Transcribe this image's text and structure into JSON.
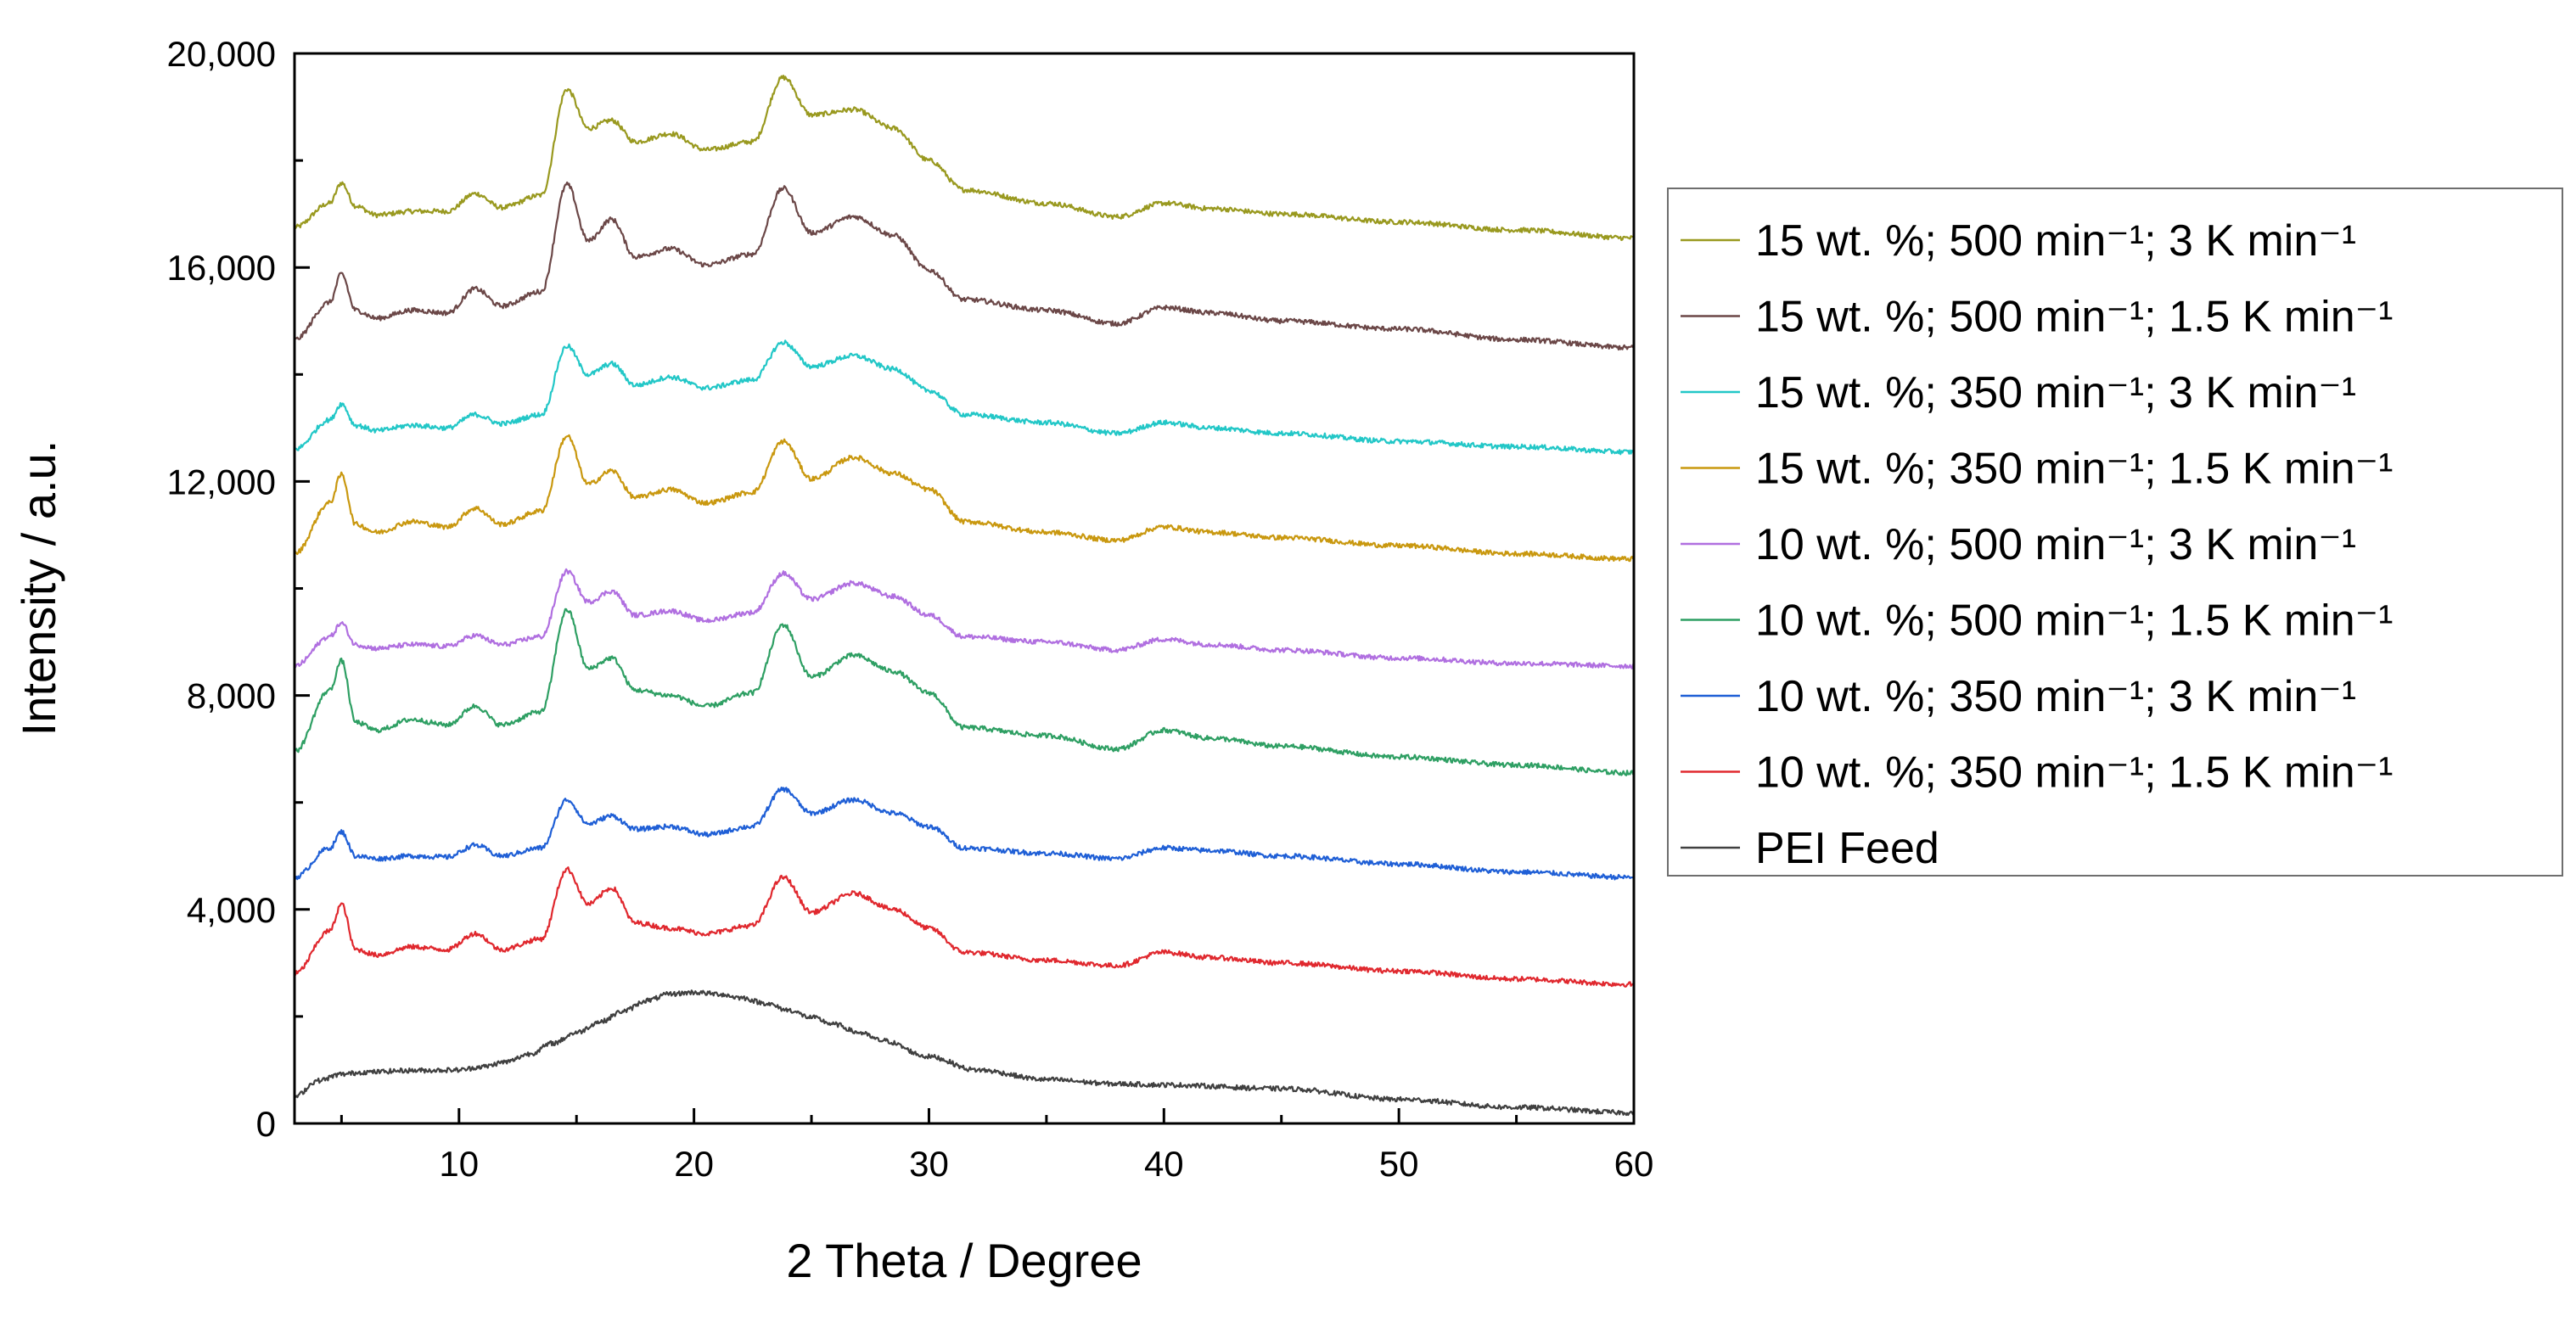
{
  "chart_data": {
    "type": "line",
    "title": "",
    "xlabel": "2 Theta / Degree",
    "ylabel": "Intensity / a.u.",
    "xlim": [
      3,
      60
    ],
    "ylim": [
      0,
      20000
    ],
    "xticks": [
      10,
      20,
      30,
      40,
      50,
      60
    ],
    "xtick_labels": [
      "10",
      "20",
      "30",
      "40",
      "50",
      "60"
    ],
    "yticks": [
      0,
      4000,
      8000,
      12000,
      16000,
      20000
    ],
    "ytick_labels": [
      "0",
      "4,000",
      "8,000",
      "12,000",
      "16,000",
      "20,000"
    ],
    "legend_position": "right",
    "series": [
      {
        "name": "15 wt. %; 500 min⁻¹; 3 K min⁻¹",
        "color": "#99991f",
        "x": [
          3,
          4.5,
          5,
          5.6,
          6.5,
          8,
          9.5,
          10.7,
          11.8,
          13.5,
          14.6,
          15.5,
          16.5,
          17.5,
          19,
          20.5,
          22.5,
          23.8,
          25,
          26.8,
          28.5,
          30,
          31.5,
          35,
          38,
          40,
          42,
          45,
          50,
          55,
          60
        ],
        "values": [
          16750,
          17200,
          17580,
          17150,
          16980,
          17050,
          17050,
          17380,
          17120,
          17350,
          19330,
          18600,
          18750,
          18350,
          18500,
          18200,
          18350,
          19550,
          18850,
          18950,
          18600,
          18000,
          17450,
          17200,
          16950,
          17200,
          17100,
          17000,
          16850,
          16700,
          16550
        ]
      },
      {
        "name": "15 wt. %; 500 min⁻¹; 1.5 K min⁻¹",
        "color": "#6b4747",
        "x": [
          3,
          4.5,
          5,
          5.6,
          6.5,
          8,
          9.5,
          10.7,
          11.8,
          13.5,
          14.6,
          15.5,
          16.5,
          17.5,
          19,
          20.5,
          22.5,
          23.8,
          25,
          26.8,
          28.5,
          30,
          31.5,
          35,
          38,
          40,
          42,
          45,
          50,
          55,
          60
        ],
        "values": [
          14650,
          15350,
          15880,
          15200,
          15050,
          15200,
          15150,
          15600,
          15280,
          15550,
          17550,
          16500,
          16900,
          16200,
          16350,
          16050,
          16250,
          17480,
          16650,
          16950,
          16600,
          15950,
          15400,
          15200,
          14950,
          15250,
          15150,
          15000,
          14850,
          14650,
          14500
        ]
      },
      {
        "name": "15 wt. %; 350 min⁻¹; 3 K min⁻¹",
        "color": "#22c7c7",
        "x": [
          3,
          4.5,
          5,
          5.6,
          6.5,
          8,
          9.5,
          10.7,
          11.8,
          13.5,
          14.6,
          15.5,
          16.5,
          17.5,
          19,
          20.5,
          22.5,
          23.8,
          25,
          26.8,
          28.5,
          30,
          31.5,
          35,
          38,
          40,
          42,
          45,
          50,
          55,
          60
        ],
        "values": [
          12600,
          13150,
          13450,
          13050,
          12950,
          13050,
          13000,
          13250,
          13080,
          13250,
          14530,
          14000,
          14200,
          13800,
          13950,
          13750,
          13900,
          14600,
          14150,
          14350,
          14100,
          13700,
          13250,
          13100,
          12900,
          13100,
          13000,
          12900,
          12750,
          12650,
          12550
        ]
      },
      {
        "name": "15 wt. %; 350 min⁻¹; 1.5 K min⁻¹",
        "color": "#c9980f",
        "x": [
          3,
          4.5,
          5,
          5.6,
          6.5,
          8,
          9.5,
          10.7,
          11.8,
          13.5,
          14.6,
          15.5,
          16.5,
          17.5,
          19,
          20.5,
          22.5,
          23.8,
          25,
          26.8,
          28.5,
          30,
          31.5,
          35,
          38,
          40,
          42,
          45,
          50,
          55,
          60
        ],
        "values": [
          10650,
          11600,
          12130,
          11200,
          11050,
          11250,
          11150,
          11500,
          11200,
          11450,
          12850,
          11950,
          12200,
          11700,
          11850,
          11600,
          11800,
          12750,
          12050,
          12450,
          12150,
          11850,
          11250,
          11050,
          10900,
          11150,
          11050,
          10950,
          10800,
          10650,
          10550
        ]
      },
      {
        "name": "10 wt. %; 500 min⁻¹; 3 K min⁻¹",
        "color": "#b06fe0",
        "x": [
          3,
          4.5,
          5,
          5.6,
          6.5,
          8,
          9.5,
          10.7,
          11.8,
          13.5,
          14.6,
          15.5,
          16.5,
          17.5,
          19,
          20.5,
          22.5,
          23.8,
          25,
          26.8,
          28.5,
          30,
          31.5,
          35,
          38,
          40,
          42,
          45,
          50,
          55,
          60
        ],
        "values": [
          8550,
          9100,
          9350,
          8950,
          8880,
          8950,
          8920,
          9120,
          8950,
          9100,
          10320,
          9750,
          9950,
          9500,
          9580,
          9400,
          9550,
          10280,
          9800,
          10100,
          9850,
          9500,
          9100,
          9000,
          8850,
          9050,
          8950,
          8850,
          8700,
          8600,
          8550
        ]
      },
      {
        "name": "10 wt. %; 500 min⁻¹; 1.5 K min⁻¹",
        "color": "#2e9f63",
        "x": [
          3,
          4.5,
          5,
          5.6,
          6.5,
          8,
          9.5,
          10.7,
          11.8,
          13.5,
          14.6,
          15.5,
          16.5,
          17.5,
          19,
          20.5,
          22.5,
          23.8,
          25,
          26.8,
          28.5,
          30,
          31.5,
          35,
          38,
          40,
          42,
          45,
          50,
          55,
          60
        ],
        "values": [
          6950,
          8100,
          8650,
          7500,
          7350,
          7550,
          7450,
          7800,
          7450,
          7700,
          9600,
          8500,
          8700,
          8100,
          8000,
          7800,
          8050,
          9320,
          8350,
          8750,
          8450,
          8050,
          7400,
          7250,
          7000,
          7350,
          7200,
          7050,
          6850,
          6700,
          6550
        ]
      },
      {
        "name": "10 wt. %; 350 min⁻¹; 3 K min⁻¹",
        "color": "#1f5fd6",
        "x": [
          3,
          4.5,
          5,
          5.6,
          6.5,
          8,
          9.5,
          10.7,
          11.8,
          13.5,
          14.6,
          15.5,
          16.5,
          17.5,
          19,
          20.5,
          22.5,
          23.8,
          25,
          26.8,
          28.5,
          30,
          31.5,
          35,
          38,
          40,
          42,
          45,
          50,
          55,
          60
        ],
        "values": [
          4600,
          5150,
          5450,
          5000,
          4950,
          5000,
          4980,
          5200,
          5000,
          5150,
          6050,
          5600,
          5750,
          5500,
          5550,
          5400,
          5550,
          6250,
          5800,
          6050,
          5800,
          5550,
          5150,
          5050,
          4950,
          5150,
          5100,
          5000,
          4850,
          4700,
          4600
        ]
      },
      {
        "name": "10 wt. %; 350 min⁻¹; 1.5 K min⁻¹",
        "color": "#e0282e",
        "x": [
          3,
          4.5,
          5,
          5.6,
          6.5,
          8,
          9.5,
          10.7,
          11.8,
          13.5,
          14.6,
          15.5,
          16.5,
          17.5,
          19,
          20.5,
          22.5,
          23.8,
          25,
          26.8,
          28.5,
          30,
          31.5,
          35,
          38,
          40,
          42,
          45,
          50,
          55,
          60
        ],
        "values": [
          2800,
          3600,
          4100,
          3250,
          3150,
          3300,
          3250,
          3550,
          3250,
          3450,
          4750,
          4100,
          4400,
          3750,
          3650,
          3550,
          3700,
          4600,
          3950,
          4300,
          4000,
          3650,
          3200,
          3050,
          2950,
          3200,
          3100,
          3000,
          2850,
          2700,
          2600
        ]
      },
      {
        "name": "PEI Feed",
        "color": "#404040",
        "x": [
          3,
          4,
          5,
          6,
          8,
          10,
          11,
          12,
          13,
          14,
          15,
          16,
          17,
          18,
          19,
          20,
          21,
          22,
          23,
          24,
          25,
          26,
          27,
          28,
          30,
          32,
          35,
          38,
          40,
          45,
          50,
          55,
          60
        ],
        "values": [
          500,
          800,
          920,
          960,
          990,
          1000,
          1060,
          1150,
          1300,
          1500,
          1700,
          1900,
          2100,
          2300,
          2420,
          2450,
          2420,
          2350,
          2250,
          2120,
          1980,
          1850,
          1700,
          1550,
          1250,
          1000,
          820,
          740,
          720,
          650,
          450,
          300,
          200
        ]
      }
    ]
  }
}
